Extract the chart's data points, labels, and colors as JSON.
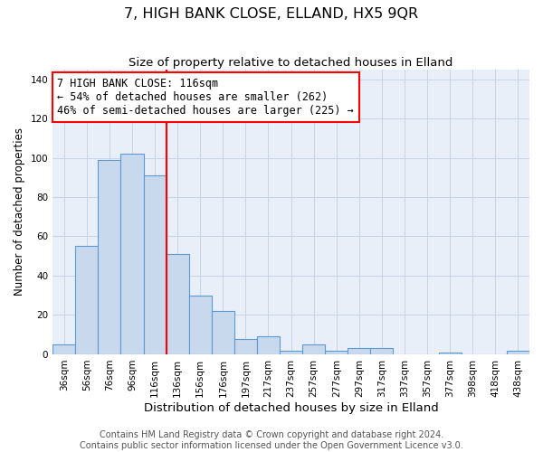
{
  "title": "7, HIGH BANK CLOSE, ELLAND, HX5 9QR",
  "subtitle": "Size of property relative to detached houses in Elland",
  "xlabel": "Distribution of detached houses by size in Elland",
  "ylabel": "Number of detached properties",
  "footer_line1": "Contains HM Land Registry data © Crown copyright and database right 2024.",
  "footer_line2": "Contains public sector information licensed under the Open Government Licence v3.0.",
  "bar_labels": [
    "36sqm",
    "56sqm",
    "76sqm",
    "96sqm",
    "116sqm",
    "136sqm",
    "156sqm",
    "176sqm",
    "197sqm",
    "217sqm",
    "237sqm",
    "257sqm",
    "277sqm",
    "297sqm",
    "317sqm",
    "337sqm",
    "357sqm",
    "377sqm",
    "398sqm",
    "418sqm",
    "438sqm"
  ],
  "bar_values": [
    5,
    55,
    99,
    102,
    91,
    51,
    30,
    22,
    8,
    9,
    2,
    5,
    2,
    3,
    3,
    0,
    0,
    1,
    0,
    0,
    2
  ],
  "bar_color": "#c9d9ed",
  "bar_edge_color": "#5b9bd5",
  "bar_linewidth": 0.8,
  "vline_x": 4.5,
  "vline_color": "red",
  "vline_linewidth": 1.5,
  "annotation_title": "7 HIGH BANK CLOSE: 116sqm",
  "annotation_line2": "← 54% of detached houses are smaller (262)",
  "annotation_line3": "46% of semi-detached houses are larger (225) →",
  "annotation_box_color": "white",
  "annotation_box_edge_color": "red",
  "annotation_fontsize": 8.5,
  "ylim": [
    0,
    145
  ],
  "yticks": [
    0,
    20,
    40,
    60,
    80,
    100,
    120,
    140
  ],
  "grid_color": "#c8d4e3",
  "bg_color": "#e8eff8",
  "title_fontsize": 11.5,
  "subtitle_fontsize": 9.5,
  "xlabel_fontsize": 9.5,
  "ylabel_fontsize": 8.5,
  "tick_fontsize": 7.5,
  "footer_fontsize": 7
}
